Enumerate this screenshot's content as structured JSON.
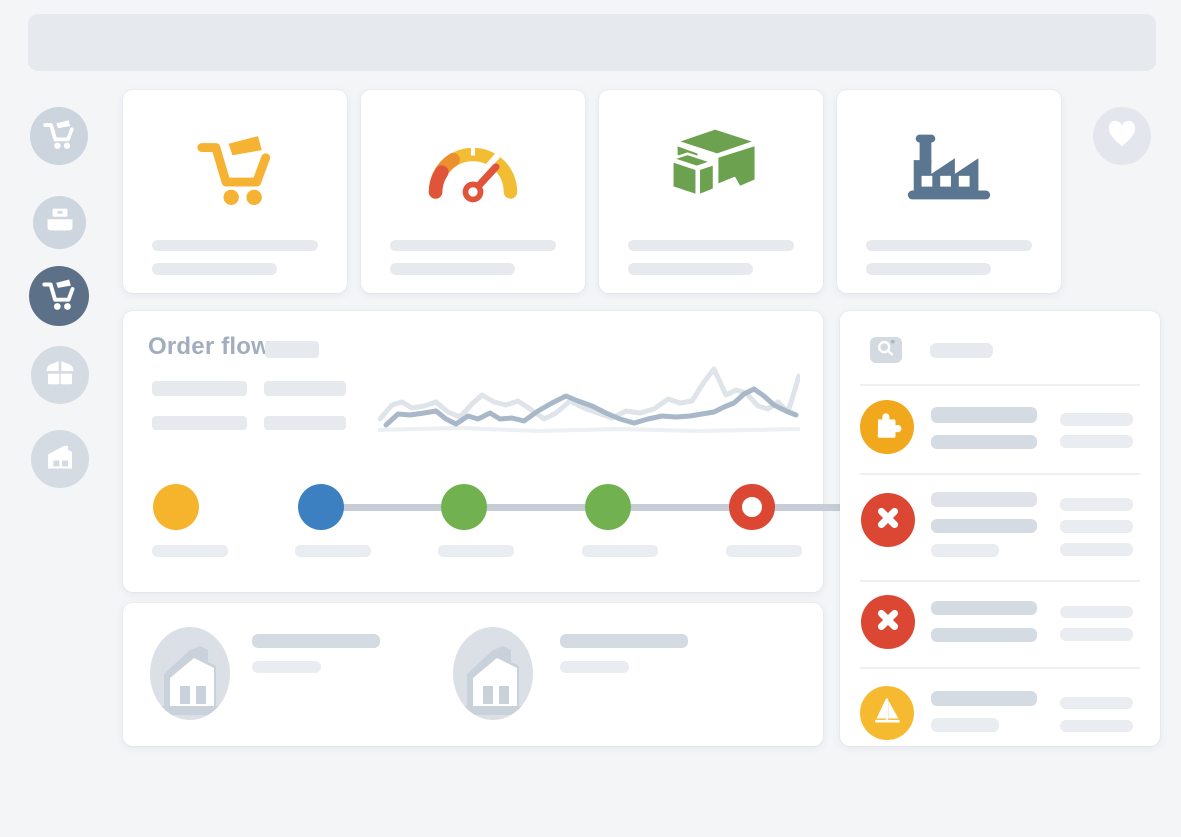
{
  "colors": {
    "page_bg": "#f3f5f7",
    "topbar": "#e6eaef",
    "bar_dark": "#d5dbe2",
    "bar_mid": "#dfe3e9",
    "bar_light": "#e9ecf0",
    "bar_card": "#e6e9ed",
    "title_gray": "#a2adbe",
    "divider": "#edeff2",
    "search_bg": "#d4dae1",
    "avatar_bg": "#dbe0e7",
    "avatar_accent": "#c9d1da",
    "heart_bg": "#e3e7ed",
    "sidebar_idle": "#ccd4de",
    "sidebar_idle_light": "#d4dbe3",
    "sidebar_active": "#5c7187",
    "cart_yellow": "#f5b233",
    "gauge_red": "#e0543a",
    "gauge_orange": "#ec8f2e",
    "gauge_yellow": "#f2bc33",
    "box_green": "#6ca24f",
    "factory_slate": "#5b7690",
    "alert_amber": "#f2a81d",
    "alert_red": "#dc4733",
    "alert_yellow": "#f5ba2f",
    "connector": "#c6cdd7"
  },
  "topbar": {},
  "sidebar": {
    "items": [
      {
        "icon": "cart-icon",
        "active": false,
        "color": "#ccd4de"
      },
      {
        "icon": "printer-icon",
        "active": false,
        "color": "#cdd5df"
      },
      {
        "icon": "cart-icon",
        "active": true,
        "color": "#5c7187"
      },
      {
        "icon": "open-box-icon",
        "active": false,
        "color": "#d4dbe3"
      },
      {
        "icon": "storefront-icon",
        "active": false,
        "color": "#d4dbe3"
      }
    ]
  },
  "stat_cards": [
    {
      "icon": "shopping-cart-icon",
      "icon_color": "#f5b233"
    },
    {
      "icon": "gauge-icon",
      "icon_color": "#e0543a"
    },
    {
      "icon": "package-icon",
      "icon_color": "#6ca24f"
    },
    {
      "icon": "factory-icon",
      "icon_color": "#5b7690"
    }
  ],
  "favorite": {
    "icon": "heart-icon",
    "bg": "#e3e7ed"
  },
  "order_flow": {
    "title": "Order flow",
    "sparkline": {
      "series": [
        {
          "name": "series-faint",
          "color": "#eceff3",
          "width": 4,
          "points": [
            [
              0,
              69
            ],
            [
              80,
              67
            ],
            [
              160,
              70
            ],
            [
              240,
              68
            ],
            [
              320,
              70
            ],
            [
              421,
              68
            ]
          ]
        },
        {
          "name": "series-light",
          "color": "#dfe4ea",
          "width": 5,
          "points": [
            [
              2,
              58
            ],
            [
              14,
              44
            ],
            [
              24,
              41
            ],
            [
              34,
              47
            ],
            [
              46,
              45
            ],
            [
              58,
              41
            ],
            [
              70,
              51
            ],
            [
              82,
              56
            ],
            [
              94,
              43
            ],
            [
              104,
              34
            ],
            [
              116,
              41
            ],
            [
              128,
              44
            ],
            [
              140,
              40
            ],
            [
              152,
              48
            ],
            [
              166,
              58
            ],
            [
              178,
              52
            ],
            [
              192,
              40
            ],
            [
              206,
              47
            ],
            [
              220,
              52
            ],
            [
              234,
              57
            ],
            [
              248,
              50
            ],
            [
              262,
              52
            ],
            [
              276,
              48
            ],
            [
              290,
              38
            ],
            [
              302,
              42
            ],
            [
              314,
              40
            ],
            [
              326,
              21
            ],
            [
              336,
              8
            ],
            [
              348,
              34
            ],
            [
              358,
              29
            ],
            [
              368,
              32
            ],
            [
              380,
              45
            ],
            [
              390,
              48
            ],
            [
              400,
              41
            ],
            [
              410,
              51
            ],
            [
              421,
              15
            ]
          ]
        },
        {
          "name": "series-blue",
          "color": "#a9b8c9",
          "width": 5,
          "points": [
            [
              8,
              64
            ],
            [
              20,
              53
            ],
            [
              32,
              54
            ],
            [
              46,
              52
            ],
            [
              58,
              50
            ],
            [
              68,
              58
            ],
            [
              78,
              63
            ],
            [
              90,
              55
            ],
            [
              100,
              58
            ],
            [
              112,
              52
            ],
            [
              122,
              58
            ],
            [
              134,
              57
            ],
            [
              146,
              60
            ],
            [
              160,
              50
            ],
            [
              174,
              42
            ],
            [
              188,
              35
            ],
            [
              200,
              40
            ],
            [
              214,
              45
            ],
            [
              228,
              52
            ],
            [
              242,
              58
            ],
            [
              256,
              62
            ],
            [
              270,
              58
            ],
            [
              284,
              55
            ],
            [
              298,
              56
            ],
            [
              312,
              55
            ],
            [
              324,
              53
            ],
            [
              336,
              51
            ],
            [
              346,
              46
            ],
            [
              356,
              42
            ],
            [
              366,
              33
            ],
            [
              376,
              28
            ],
            [
              386,
              35
            ],
            [
              396,
              44
            ],
            [
              408,
              50
            ],
            [
              418,
              54
            ]
          ]
        }
      ]
    },
    "timeline": {
      "connector_color": "#c6cdd7",
      "steps": [
        {
          "color": "#f6b42c",
          "style": "filled"
        },
        {
          "color": "#3d80c2",
          "style": "filled"
        },
        {
          "color": "#72b150",
          "style": "filled"
        },
        {
          "color": "#72b150",
          "style": "filled"
        },
        {
          "color": "#dc4734",
          "style": "ring"
        }
      ]
    }
  },
  "partners": {
    "items": [
      {
        "icon": "warehouse-icon"
      },
      {
        "icon": "warehouse-icon"
      }
    ]
  },
  "alerts": {
    "header_icon": "search-icon",
    "rows": [
      {
        "icon": "puzzle-icon",
        "color": "#f2a81d"
      },
      {
        "icon": "x-icon",
        "color": "#dc4733"
      },
      {
        "icon": "x-icon",
        "color": "#dc4733"
      },
      {
        "icon": "sailboat-icon",
        "color": "#f5ba2f"
      }
    ]
  }
}
